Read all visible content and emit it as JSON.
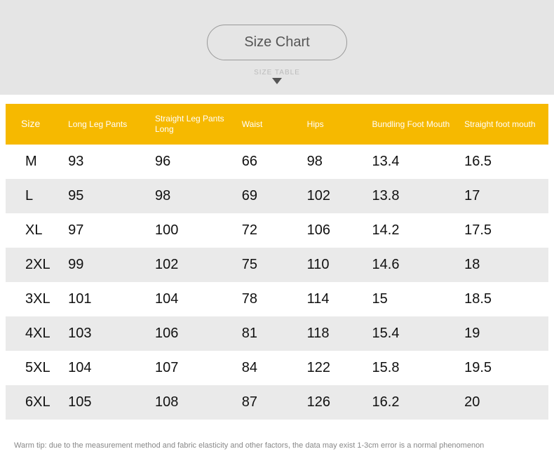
{
  "header": {
    "pill_label": "Size Chart",
    "sub_label": "SIZE TABLE"
  },
  "table": {
    "columns": [
      "Size",
      "Long Leg Pants",
      "Straight Leg Pants Long",
      "Waist",
      "Hips",
      "Bundling Foot Mouth",
      "Straight foot mouth"
    ],
    "rows": [
      [
        "M",
        "93",
        "96",
        "66",
        "98",
        "13.4",
        "16.5"
      ],
      [
        "L",
        "95",
        "98",
        "69",
        "102",
        "13.8",
        "17"
      ],
      [
        "XL",
        "97",
        "100",
        "72",
        "106",
        "14.2",
        "17.5"
      ],
      [
        "2XL",
        "99",
        "102",
        "75",
        "110",
        "14.6",
        "18"
      ],
      [
        "3XL",
        "101",
        "104",
        "78",
        "114",
        "15",
        "18.5"
      ],
      [
        "4XL",
        "103",
        "106",
        "81",
        "118",
        "15.4",
        "19"
      ],
      [
        "5XL",
        "104",
        "107",
        "84",
        "122",
        "15.8",
        "19.5"
      ],
      [
        "6XL",
        "105",
        "108",
        "87",
        "126",
        "16.2",
        "20"
      ]
    ],
    "header_bg": "#f6b900",
    "header_text_color": "#ffffff",
    "row_even_bg": "#eaeaea",
    "row_odd_bg": "#ffffff",
    "cell_font_size": 20
  },
  "footer": {
    "warm_tip": "Warm tip: due to the measurement method and fabric elasticity and other factors, the data may exist 1-3cm error is a normal phenomenon"
  }
}
